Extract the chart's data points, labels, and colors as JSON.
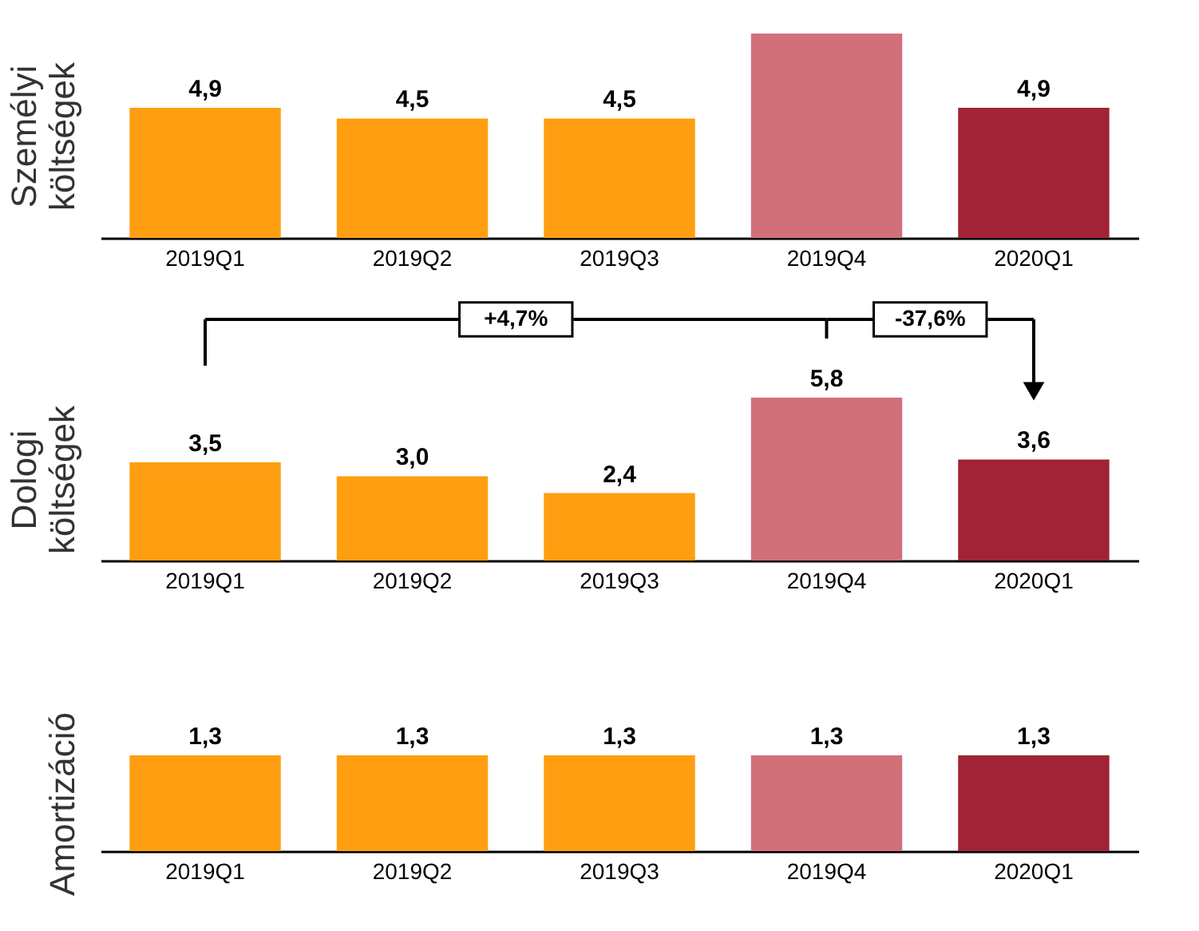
{
  "chart_data": [
    {
      "type": "bar",
      "ylabel": "Személyi költségek",
      "categories": [
        "2019Q1",
        "2019Q2",
        "2019Q3",
        "2019Q4",
        "2020Q1"
      ],
      "values": [
        4.9,
        4.5,
        4.5,
        7.7,
        4.9
      ],
      "value_labels": [
        "4,9",
        "4,5",
        "4,5",
        null,
        "4,9"
      ],
      "colors": [
        "#ff9e10",
        "#ff9e10",
        "#ff9e10",
        "#d2707a",
        "#a02336"
      ],
      "tick_labels": "x"
    },
    {
      "type": "bar",
      "ylabel": "Dologi költségek",
      "categories": [
        "2019Q1",
        "2019Q2",
        "2019Q3",
        "2019Q4",
        "2020Q1"
      ],
      "values": [
        3.5,
        3.0,
        2.4,
        5.8,
        3.6
      ],
      "value_labels": [
        "3,5",
        "3,0",
        "2,4",
        "5,8",
        "3,6"
      ],
      "colors": [
        "#ff9e10",
        "#ff9e10",
        "#ff9e10",
        "#d2707a",
        "#a02336"
      ],
      "tick_labels": "x",
      "annotations": [
        "+4,7%",
        "-37,6%"
      ]
    },
    {
      "type": "bar",
      "ylabel": "Amortizáció",
      "categories": [
        "2019Q1",
        "2019Q2",
        "2019Q3",
        "2019Q4",
        "2020Q1"
      ],
      "values": [
        1.3,
        1.3,
        1.3,
        1.3,
        1.3
      ],
      "value_labels": [
        "1,3",
        "1,3",
        "1,3",
        "1,3",
        "1,3"
      ],
      "colors": [
        "#ff9e10",
        "#ff9e10",
        "#ff9e10",
        "#d2707a",
        "#a02336"
      ],
      "tick_labels": "x"
    }
  ]
}
